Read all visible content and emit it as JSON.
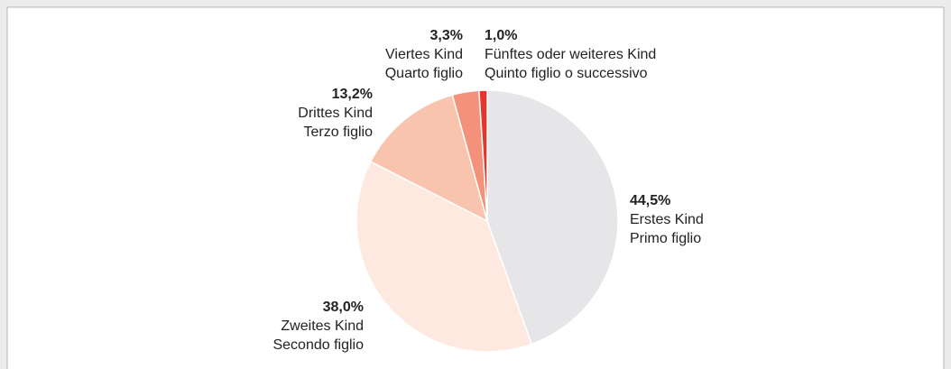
{
  "chart_data": {
    "type": "pie",
    "categories": [
      "Erstes Kind",
      "Zweites Kind",
      "Drittes Kind",
      "Viertes Kind",
      "Fünftes oder weiteres Kind"
    ],
    "categories_it": [
      "Primo figlio",
      "Secondo figlio",
      "Terzo figlio",
      "Quarto figlio",
      "Quinto figlio o successivo"
    ],
    "values": [
      44.5,
      38.0,
      13.2,
      3.3,
      1.0
    ],
    "value_labels": [
      "44,5%",
      "38,0%",
      "13,2%",
      "3,3%",
      "1,0%"
    ],
    "colors": [
      "#e6e6e8",
      "#fde9df",
      "#f9c4ae",
      "#f4917a",
      "#e8352b"
    ]
  }
}
